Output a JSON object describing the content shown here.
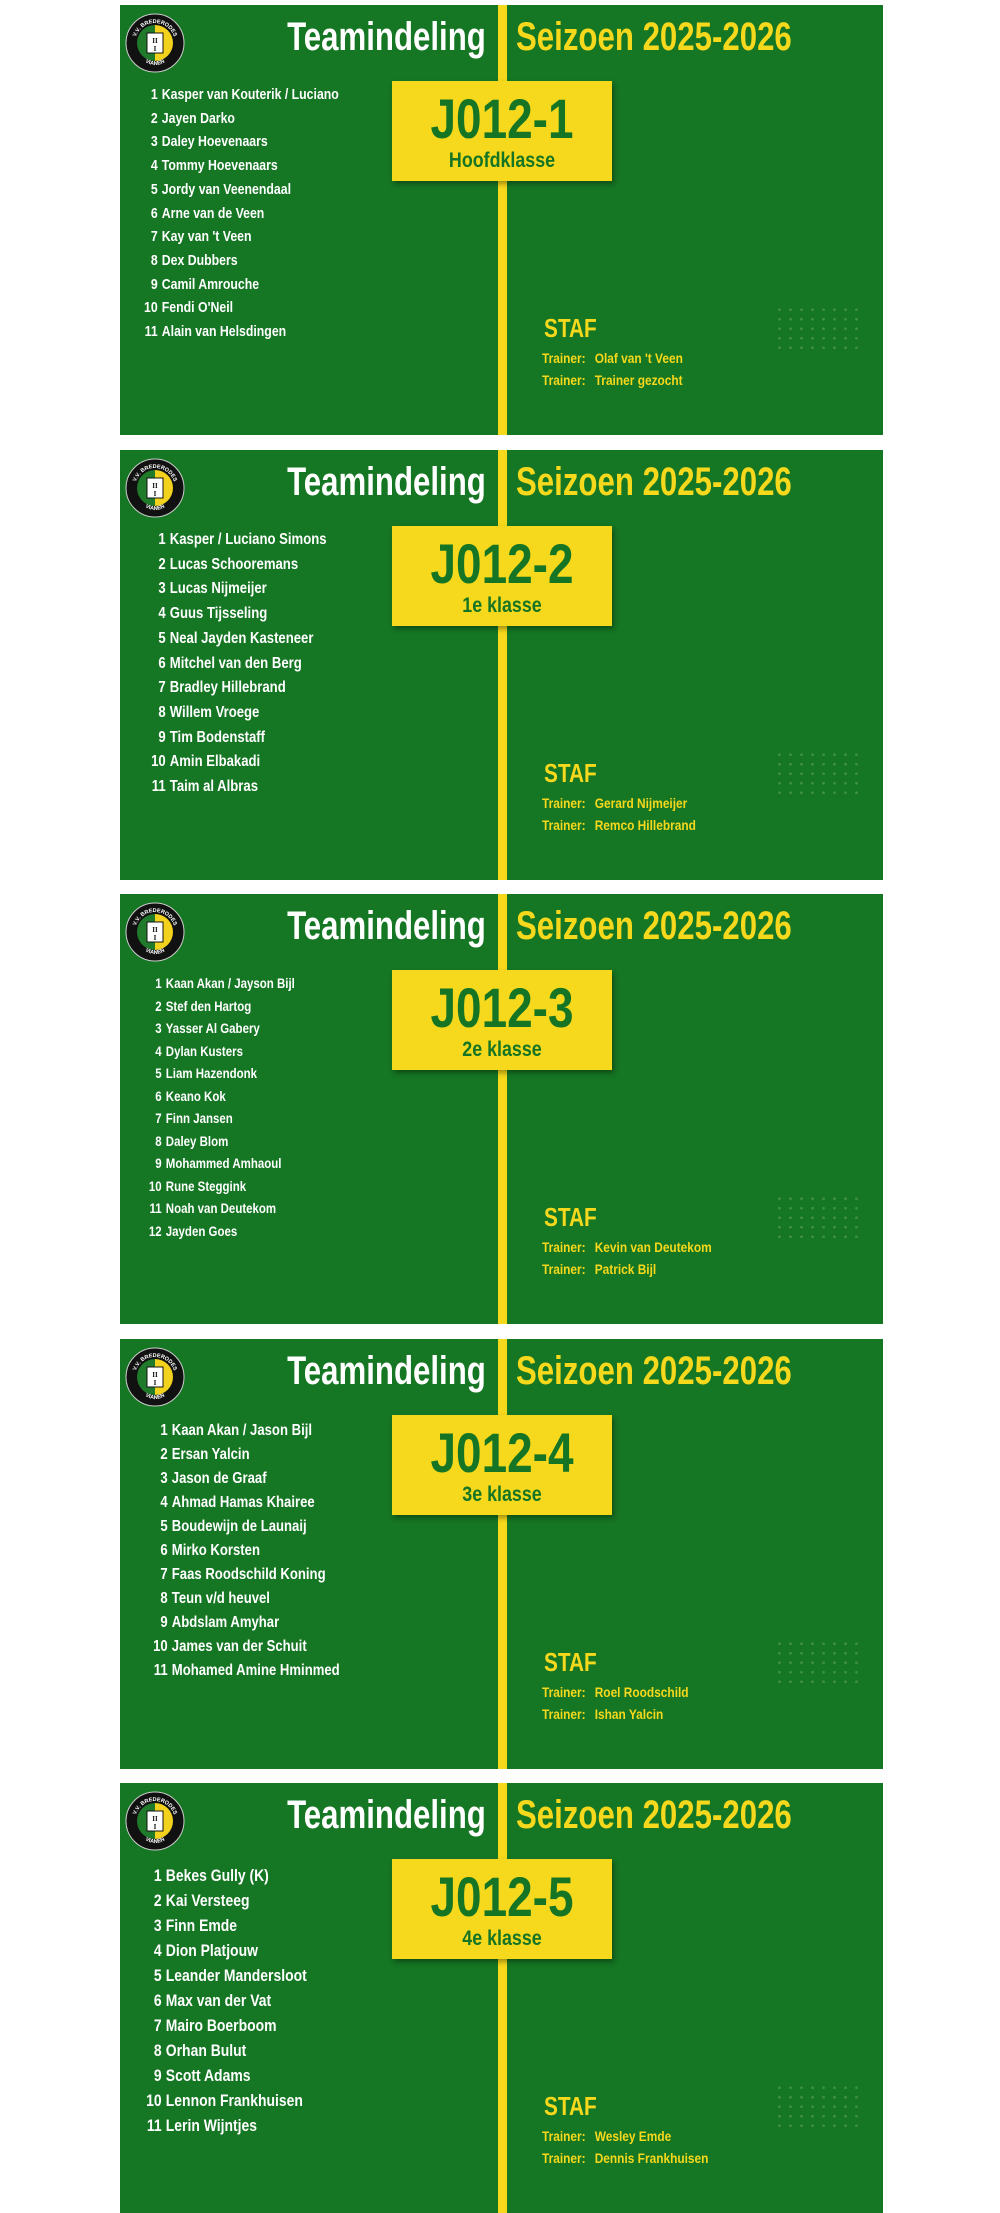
{
  "colors": {
    "green": "#157623",
    "yellow": "#f6d81c",
    "team_text": "#167524"
  },
  "logo": {
    "top_text": "V.V. BREDERODES",
    "bottom_text": "VIANEN",
    "shield_text": "II I"
  },
  "cards": [
    {
      "heading": "Teamindeling",
      "season": "Seizoen 2025-2026",
      "team": "J012-1",
      "class": "Hoofdklasse",
      "players": [
        {
          "num": "1",
          "name": "Kasper van Kouterik / Luciano"
        },
        {
          "num": "2",
          "name": "Jayen Darko"
        },
        {
          "num": "3",
          "name": "Daley Hoevenaars"
        },
        {
          "num": "4",
          "name": "Tommy Hoevenaars"
        },
        {
          "num": "5",
          "name": "Jordy van Veenendaal"
        },
        {
          "num": "6",
          "name": "Arne van de Veen"
        },
        {
          "num": "7",
          "name": "Kay van 't Veen"
        },
        {
          "num": "8",
          "name": "Dex Dubbers"
        },
        {
          "num": "9",
          "name": "Camil Amrouche"
        },
        {
          "num": "10",
          "name": "Fendi  O'Neil"
        },
        {
          "num": "11",
          "name": "Alain van Helsdingen"
        }
      ],
      "staf_label": "STAF",
      "trainers": [
        {
          "label": "Trainer:",
          "name": "Olaf van 't Veen"
        },
        {
          "label": "Trainer:",
          "name": "Trainer gezocht"
        }
      ]
    },
    {
      "heading": "Teamindeling",
      "season": "Seizoen 2025-2026",
      "team": "J012-2",
      "class": "1e klasse",
      "players": [
        {
          "num": "1",
          "name": "Kasper / Luciano Simons"
        },
        {
          "num": "2",
          "name": "Lucas Schooremans"
        },
        {
          "num": "3",
          "name": "Lucas Nijmeijer"
        },
        {
          "num": "4",
          "name": "Guus Tijsseling"
        },
        {
          "num": "5",
          "name": "Neal Jayden Kasteneer"
        },
        {
          "num": "6",
          "name": "Mitchel van den Berg"
        },
        {
          "num": "7",
          "name": "Bradley Hillebrand"
        },
        {
          "num": "8",
          "name": "Willem Vroege"
        },
        {
          "num": "9",
          "name": "Tim Bodenstaff"
        },
        {
          "num": "10",
          "name": "Amin Elbakadi"
        },
        {
          "num": "11",
          "name": "Taim al Albras"
        }
      ],
      "staf_label": "STAF",
      "trainers": [
        {
          "label": "Trainer:",
          "name": "Gerard Nijmeijer"
        },
        {
          "label": "Trainer:",
          "name": "Remco Hillebrand"
        }
      ]
    },
    {
      "heading": "Teamindeling",
      "season": "Seizoen 2025-2026",
      "team": "J012-3",
      "class": "2e klasse",
      "players": [
        {
          "num": "1",
          "name": "Kaan Akan / Jayson Bijl"
        },
        {
          "num": "2",
          "name": "Stef den Hartog"
        },
        {
          "num": "3",
          "name": "Yasser Al Gabery"
        },
        {
          "num": "4",
          "name": "Dylan Kusters"
        },
        {
          "num": "5",
          "name": "Liam Hazendonk"
        },
        {
          "num": "6",
          "name": "Keano Kok"
        },
        {
          "num": "7",
          "name": "Finn Jansen"
        },
        {
          "num": "8",
          "name": "Daley Blom"
        },
        {
          "num": "9",
          "name": "Mohammed Amhaoul"
        },
        {
          "num": "10",
          "name": "Rune Steggink"
        },
        {
          "num": "11",
          "name": "Noah van Deutekom"
        },
        {
          "num": "12",
          "name": "Jayden Goes"
        }
      ],
      "staf_label": "STAF",
      "trainers": [
        {
          "label": "Trainer:",
          "name": "Kevin van Deutekom"
        },
        {
          "label": "Trainer:",
          "name": "Patrick Bijl"
        }
      ]
    },
    {
      "heading": "Teamindeling",
      "season": "Seizoen 2025-2026",
      "team": "J012-4",
      "class": "3e klasse",
      "players": [
        {
          "num": "1",
          "name": "Kaan Akan / Jason Bijl"
        },
        {
          "num": "2",
          "name": "Ersan Yalcin"
        },
        {
          "num": "3",
          "name": "Jason de Graaf"
        },
        {
          "num": "4",
          "name": "Ahmad Hamas Khairee"
        },
        {
          "num": "5",
          "name": "Boudewijn de Launaij"
        },
        {
          "num": "6",
          "name": "Mirko Korsten"
        },
        {
          "num": "7",
          "name": "Faas Roodschild Koning"
        },
        {
          "num": "8",
          "name": "Teun v/d heuvel"
        },
        {
          "num": "9",
          "name": "Abdslam Amyhar"
        },
        {
          "num": "10",
          "name": "James van der Schuit"
        },
        {
          "num": "11",
          "name": "Mohamed Amine Hminmed"
        }
      ],
      "staf_label": "STAF",
      "trainers": [
        {
          "label": "Trainer:",
          "name": "Roel Roodschild"
        },
        {
          "label": "Trainer:",
          "name": "Ishan Yalcin"
        }
      ]
    },
    {
      "heading": "Teamindeling",
      "season": "Seizoen 2025-2026",
      "team": "J012-5",
      "class": "4e klasse",
      "players": [
        {
          "num": "1",
          "name": "Bekes Gully (K)"
        },
        {
          "num": "2",
          "name": "Kai Versteeg"
        },
        {
          "num": "3",
          "name": "Finn Emde"
        },
        {
          "num": "4",
          "name": "Dion Platjouw"
        },
        {
          "num": "5",
          "name": "Leander Mandersloot"
        },
        {
          "num": "6",
          "name": "Max van der Vat"
        },
        {
          "num": "7",
          "name": "Mairo Boerboom"
        },
        {
          "num": "8",
          "name": "Orhan Bulut"
        },
        {
          "num": "9",
          "name": "Scott Adams"
        },
        {
          "num": "10",
          "name": "Lennon Frankhuisen"
        },
        {
          "num": "11",
          "name": "Lerin Wijntjes"
        }
      ],
      "staf_label": "STAF",
      "trainers": [
        {
          "label": "Trainer:",
          "name": "Wesley  Emde"
        },
        {
          "label": "Trainer:",
          "name": "Dennis Frankhuisen"
        }
      ]
    }
  ]
}
